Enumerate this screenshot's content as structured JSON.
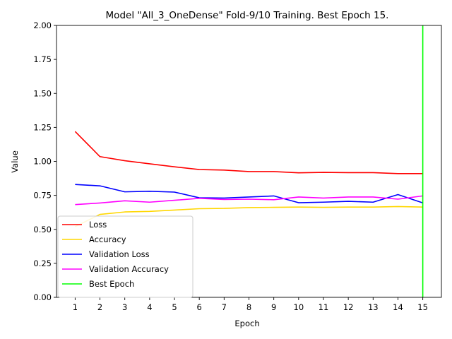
{
  "chart_data": {
    "type": "line",
    "title": "Model \"All_3_OneDense\" Fold-9/10 Training. Best Epoch 15.",
    "xlabel": "Epoch",
    "ylabel": "Value",
    "xlim": [
      0.25,
      15.75
    ],
    "ylim": [
      0,
      2
    ],
    "x": [
      1,
      2,
      3,
      4,
      5,
      6,
      7,
      8,
      9,
      10,
      11,
      12,
      13,
      14,
      15
    ],
    "x_ticks": [
      "1",
      "2",
      "3",
      "4",
      "5",
      "6",
      "7",
      "8",
      "9",
      "10",
      "11",
      "12",
      "13",
      "14",
      "15"
    ],
    "y_ticks": [
      "0.00",
      "0.25",
      "0.50",
      "0.75",
      "1.00",
      "1.25",
      "1.50",
      "1.75",
      "2.00"
    ],
    "grid": false,
    "legend_position": "lower-left",
    "series": [
      {
        "name": "Loss",
        "color": "#ff0000",
        "values": [
          1.22,
          1.035,
          1.005,
          0.982,
          0.96,
          0.94,
          0.936,
          0.925,
          0.925,
          0.916,
          0.919,
          0.917,
          0.917,
          0.91,
          0.91
        ]
      },
      {
        "name": "Accuracy",
        "color": "#ffd700",
        "values": [
          0.52,
          0.61,
          0.628,
          0.632,
          0.642,
          0.652,
          0.654,
          0.66,
          0.662,
          0.664,
          0.662,
          0.664,
          0.664,
          0.668,
          0.664
        ]
      },
      {
        "name": "Validation Loss",
        "color": "#0000ff",
        "values": [
          0.83,
          0.82,
          0.776,
          0.78,
          0.774,
          0.732,
          0.73,
          0.738,
          0.746,
          0.696,
          0.7,
          0.706,
          0.7,
          0.756,
          0.695
        ]
      },
      {
        "name": "Validation  Accuracy",
        "color": "#ff00ff",
        "values": [
          0.682,
          0.694,
          0.71,
          0.7,
          0.714,
          0.728,
          0.72,
          0.722,
          0.718,
          0.738,
          0.73,
          0.738,
          0.738,
          0.722,
          0.746
        ]
      }
    ],
    "best_epoch": {
      "name": "Best Epoch",
      "x": 15,
      "color": "#00ff00"
    }
  }
}
